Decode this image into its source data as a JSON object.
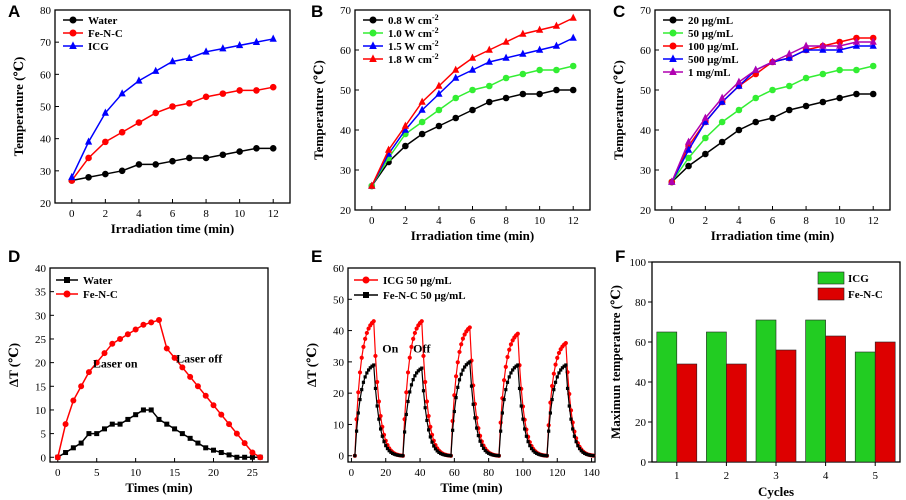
{
  "chart_data": [
    {
      "panel": "A",
      "type": "line",
      "xlabel": "Irradiation time (min)",
      "ylabel": "Temperature (℃)",
      "xlim": [
        -1,
        13
      ],
      "ylim": [
        20,
        80
      ],
      "xticks": [
        0,
        2,
        4,
        6,
        8,
        10,
        12
      ],
      "yticks": [
        20,
        30,
        40,
        50,
        60,
        70,
        80
      ],
      "legend_position": "top-left",
      "x": [
        0,
        1,
        2,
        3,
        4,
        5,
        6,
        7,
        8,
        9,
        10,
        11,
        12
      ],
      "series": [
        {
          "name": "Water",
          "color": "#000000",
          "marker": "circle",
          "values": [
            27,
            28,
            29,
            30,
            32,
            32,
            33,
            34,
            34,
            35,
            36,
            37,
            37
          ]
        },
        {
          "name": "Fe-N-C",
          "color": "#ff0000",
          "marker": "circle",
          "values": [
            27,
            34,
            39,
            42,
            45,
            48,
            50,
            51,
            53,
            54,
            55,
            55,
            56
          ]
        },
        {
          "name": "ICG",
          "color": "#0000ff",
          "marker": "triangle",
          "values": [
            28,
            39,
            48,
            54,
            58,
            61,
            64,
            65,
            67,
            68,
            69,
            70,
            71
          ]
        }
      ]
    },
    {
      "panel": "B",
      "type": "line",
      "xlabel": "Irradiation time (min)",
      "ylabel": "Temperature (℃)",
      "xlim": [
        -1,
        13
      ],
      "ylim": [
        20,
        70
      ],
      "xticks": [
        0,
        2,
        4,
        6,
        8,
        10,
        12
      ],
      "yticks": [
        20,
        30,
        40,
        50,
        60,
        70
      ],
      "legend_position": "top-left",
      "x": [
        0,
        1,
        2,
        3,
        4,
        5,
        6,
        7,
        8,
        9,
        10,
        11,
        12
      ],
      "series": [
        {
          "name": "0.8 W cm",
          "superscript": "-2",
          "color": "#000000",
          "marker": "circle",
          "values": [
            26,
            32,
            36,
            39,
            41,
            43,
            45,
            47,
            48,
            49,
            49,
            50,
            50
          ]
        },
        {
          "name": "1.0 W cm",
          "superscript": "-2",
          "color": "#33ee33",
          "marker": "circle",
          "values": [
            26,
            33,
            39,
            42,
            45,
            48,
            50,
            51,
            53,
            54,
            55,
            55,
            56
          ]
        },
        {
          "name": "1.5 W cm",
          "superscript": "-2",
          "color": "#0000ff",
          "marker": "triangle",
          "values": [
            26,
            34,
            40,
            45,
            49,
            53,
            55,
            57,
            58,
            59,
            60,
            61,
            63
          ]
        },
        {
          "name": "1.8 W cm",
          "superscript": "-2",
          "color": "#ff0000",
          "marker": "triangle",
          "values": [
            26,
            35,
            41,
            47,
            51,
            55,
            58,
            60,
            62,
            64,
            65,
            66,
            68
          ]
        }
      ]
    },
    {
      "panel": "C",
      "type": "line",
      "xlabel": "Irradiation time (min)",
      "ylabel": "Temperature (℃)",
      "xlim": [
        -1,
        13
      ],
      "ylim": [
        20,
        70
      ],
      "xticks": [
        0,
        2,
        4,
        6,
        8,
        10,
        12
      ],
      "yticks": [
        20,
        30,
        40,
        50,
        60,
        70
      ],
      "legend_position": "top-left",
      "x": [
        0,
        1,
        2,
        3,
        4,
        5,
        6,
        7,
        8,
        9,
        10,
        11,
        12
      ],
      "series": [
        {
          "name": "20 μg/mL",
          "color": "#000000",
          "marker": "circle",
          "values": [
            27,
            31,
            34,
            37,
            40,
            42,
            43,
            45,
            46,
            47,
            48,
            49,
            49
          ]
        },
        {
          "name": "50 μg/mL",
          "color": "#33ee33",
          "marker": "circle",
          "values": [
            27,
            33,
            38,
            42,
            45,
            48,
            50,
            51,
            53,
            54,
            55,
            55,
            56
          ]
        },
        {
          "name": "100 μg/mL",
          "color": "#ff0000",
          "marker": "circle",
          "values": [
            27,
            36,
            42,
            47,
            51,
            54,
            57,
            58,
            60,
            61,
            62,
            63,
            63
          ]
        },
        {
          "name": "500 μg/mL",
          "color": "#0000ff",
          "marker": "triangle",
          "values": [
            27,
            35,
            42,
            47,
            51,
            55,
            57,
            58,
            60,
            60,
            60,
            61,
            61
          ]
        },
        {
          "name": "1 mg/mL",
          "color": "#b000b0",
          "marker": "triangle",
          "values": [
            27,
            37,
            43,
            48,
            52,
            55,
            57,
            59,
            61,
            61,
            61,
            62,
            62
          ]
        }
      ]
    },
    {
      "panel": "D",
      "type": "line",
      "xlabel": "Times (min)",
      "ylabel": "ΔT (℃)",
      "xlim": [
        -1,
        27
      ],
      "ylim": [
        -1,
        40
      ],
      "xticks": [
        0,
        5,
        10,
        15,
        20,
        25
      ],
      "yticks": [
        0,
        5,
        10,
        15,
        20,
        25,
        30,
        35,
        40
      ],
      "legend_position": "top-left",
      "x": [
        0,
        1,
        2,
        3,
        4,
        5,
        6,
        7,
        8,
        9,
        10,
        11,
        12,
        13,
        14,
        15,
        16,
        17,
        18,
        19,
        20,
        21,
        22,
        23,
        24,
        25,
        26
      ],
      "series": [
        {
          "name": "Water",
          "color": "#000000",
          "marker": "square",
          "values": [
            0,
            1,
            2,
            3,
            5,
            5,
            6,
            7,
            7,
            8,
            9,
            10,
            10,
            8,
            7,
            6,
            5,
            4,
            3,
            2,
            1.5,
            1,
            0.5,
            0,
            0,
            0,
            0
          ]
        },
        {
          "name": "Fe-N-C",
          "color": "#ff0000",
          "marker": "circle",
          "values": [
            0,
            7,
            12,
            15,
            18,
            20,
            22,
            24,
            25,
            26,
            27,
            28,
            28.5,
            29,
            23,
            21,
            19,
            17,
            15,
            13,
            11,
            9,
            7,
            5,
            3,
            1,
            0
          ]
        }
      ],
      "annotations": [
        "Laser on",
        "Laser off"
      ]
    },
    {
      "panel": "E",
      "type": "line",
      "xlabel": "Time (min)",
      "ylabel": "ΔT (℃)",
      "xlim": [
        -2,
        142
      ],
      "ylim": [
        -2,
        60
      ],
      "xticks": [
        0,
        20,
        40,
        60,
        80,
        100,
        120,
        140
      ],
      "yticks": [
        0,
        10,
        20,
        30,
        40,
        50,
        60
      ],
      "legend_position": "top-left",
      "cycles": 5,
      "cycle_starts": [
        2,
        30,
        58,
        86,
        114
      ],
      "heating_minutes": 11,
      "cooling_minutes": 16,
      "series": [
        {
          "name": "ICG 50 μg/mL",
          "color": "#ff0000",
          "marker": "circle",
          "cycle_peaks": [
            43,
            43,
            41,
            39,
            36
          ]
        },
        {
          "name": "Fe-N-C 50 μg/mL",
          "color": "#000000",
          "marker": "square",
          "cycle_peaks": [
            29,
            28,
            30,
            29,
            29
          ]
        }
      ],
      "annotations": [
        "On",
        "Off"
      ]
    },
    {
      "panel": "F",
      "type": "bar",
      "xlabel": "Cycles",
      "ylabel": "Maximun temperature (℃)",
      "categories": [
        "1",
        "2",
        "3",
        "4",
        "5"
      ],
      "ylim": [
        0,
        100
      ],
      "yticks": [
        0,
        20,
        40,
        60,
        80,
        100
      ],
      "legend_position": "top-right",
      "series": [
        {
          "name": "ICG",
          "color": "#22cc22",
          "values": [
            65,
            65,
            71,
            71,
            55
          ]
        },
        {
          "name": "Fe-N-C",
          "color": "#dd0000",
          "values": [
            49,
            49,
            56,
            63,
            60
          ]
        }
      ]
    }
  ]
}
